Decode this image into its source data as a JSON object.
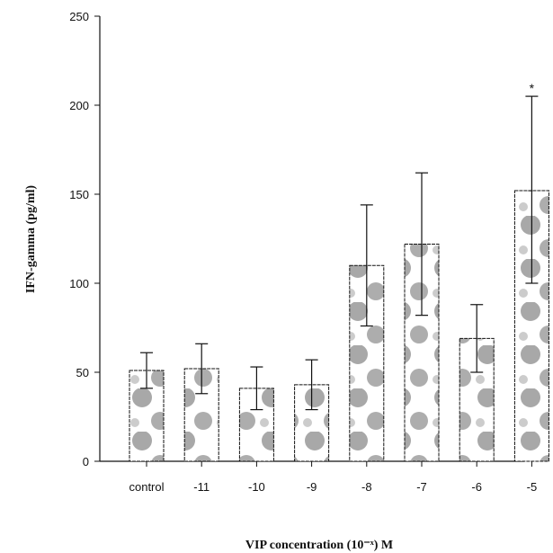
{
  "chart_data": {
    "type": "bar",
    "categories": [
      "control",
      "-11",
      "-10",
      "-9",
      "-8",
      "-7",
      "-6",
      "-5"
    ],
    "values": [
      51,
      52,
      41,
      43,
      110,
      122,
      69,
      152
    ],
    "error_high": [
      61,
      66,
      53,
      57,
      144,
      162,
      88,
      205
    ],
    "error_low": [
      41,
      38,
      29,
      29,
      76,
      82,
      50,
      100
    ],
    "annotations": [
      {
        "category": "-5",
        "text": "*"
      }
    ],
    "ylabel": "IFN-gamma (pg/ml)",
    "xlabel": "VIP concentration (10⁻ˣ) M",
    "ylim": [
      0,
      250
    ],
    "yticks": [
      "0",
      "50",
      "100",
      "150",
      "200",
      "250"
    ],
    "grid": false,
    "legend": "none",
    "bar_fill": "#ffffff",
    "bar_pattern_color": "#8a8a8a",
    "axis_color": "#111111"
  }
}
